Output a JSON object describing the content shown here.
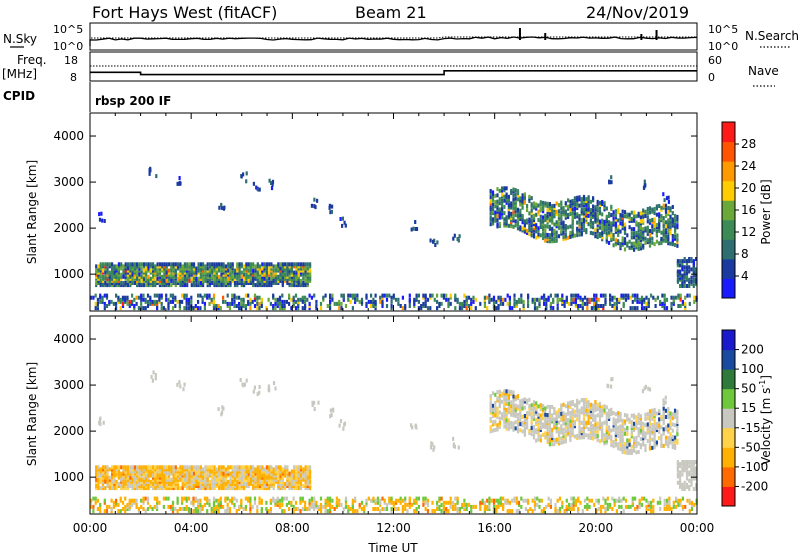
{
  "header": {
    "station": "Fort Hays West (fitACF)",
    "beam": "Beam 21",
    "date": "24/Nov/2019"
  },
  "summary_panels": {
    "nsky_label": "N.Sky",
    "nsearch_label": "N.Search",
    "noise_ticks": [
      "10^5",
      "10^0"
    ],
    "freq_label_1": "Freq.",
    "freq_label_2": "[MHz]",
    "freq_ticks": [
      "18",
      "8"
    ],
    "nave_label": "Nave",
    "nave_ticks": [
      "60",
      "0"
    ],
    "cpid_label": "CPID",
    "cpid_value": "rbsp 200 IF"
  },
  "colors": {
    "power": [
      "#1a1aff",
      "#1a3aa0",
      "#2e6e70",
      "#3c8a55",
      "#6aa83a",
      "#ffcc00",
      "#ff9900",
      "#ff5500",
      "#ff1a1a"
    ],
    "velocity": [
      "#ff1a1a",
      "#ff6a00",
      "#ffb000",
      "#ffd24a",
      "#c8c8c0",
      "#6ec83c",
      "#2e7a3a",
      "#1a4aa0",
      "#1a1acc"
    ]
  },
  "chart_data": [
    {
      "type": "heatmap",
      "panel": "power",
      "ylabel": "Slant Range [km]",
      "yticks": [
        "4000",
        "3000",
        "2000",
        "1000"
      ],
      "ylim": [
        200,
        4500
      ],
      "xlim": [
        0,
        24
      ],
      "colorbar_label": "Power [dB]",
      "colorbar_ticks": [
        "28",
        "24",
        "20",
        "16",
        "12",
        "8",
        "4"
      ],
      "colorbar_range": [
        0,
        32
      ],
      "echo_regions": [
        {
          "t_start": 0.2,
          "t_end": 8.7,
          "range_start": 700,
          "range_end": 1200,
          "level": "medium-high"
        },
        {
          "t_start": 15.8,
          "t_end": 23.2,
          "range_start": 1500,
          "range_end": 2800,
          "level": "medium"
        },
        {
          "t_start": 23.2,
          "t_end": 24.0,
          "range_start": 700,
          "range_end": 1300,
          "level": "medium"
        },
        {
          "t_start": 0.0,
          "t_end": 24.0,
          "range_start": 200,
          "range_end": 500,
          "level": "mixed"
        }
      ]
    },
    {
      "type": "heatmap",
      "panel": "velocity",
      "ylabel": "Slant Range [km]",
      "xlabel": "Time UT",
      "yticks": [
        "4000",
        "3000",
        "2000",
        "1000"
      ],
      "xticks": [
        "00:00",
        "04:00",
        "08:00",
        "12:00",
        "16:00",
        "20:00",
        "00:00"
      ],
      "ylim": [
        200,
        4500
      ],
      "xlim": [
        0,
        24
      ],
      "colorbar_label": "Velocity [m s",
      "colorbar_sup": "-1",
      "colorbar_ticks": [
        "200",
        "100",
        "50",
        "15",
        "-15",
        "-50",
        "-100",
        "-200"
      ],
      "echo_regions": [
        {
          "t_start": 0.2,
          "t_end": 8.7,
          "range_start": 700,
          "range_end": 1200,
          "velocity": "-60 to 0"
        },
        {
          "t_start": 15.8,
          "t_end": 23.2,
          "range_start": 1500,
          "range_end": 2800,
          "velocity": "-15 to 15"
        },
        {
          "t_start": 23.2,
          "t_end": 24.0,
          "range_start": 700,
          "range_end": 1300,
          "velocity": "-15 to 15"
        }
      ]
    },
    {
      "type": "line",
      "panel": "noise",
      "series": [
        {
          "name": "N.Sky",
          "style": "solid"
        },
        {
          "name": "N.Search",
          "style": "dotted"
        }
      ]
    },
    {
      "type": "line",
      "panel": "frequency-nave",
      "series": [
        {
          "name": "Freq.",
          "style": "solid",
          "x": [
            0,
            2,
            2,
            14,
            14,
            24
          ],
          "y": [
            11,
            11,
            10.2,
            10.2,
            11.5,
            11.5
          ]
        },
        {
          "name": "Nave",
          "style": "dotted"
        }
      ]
    }
  ]
}
